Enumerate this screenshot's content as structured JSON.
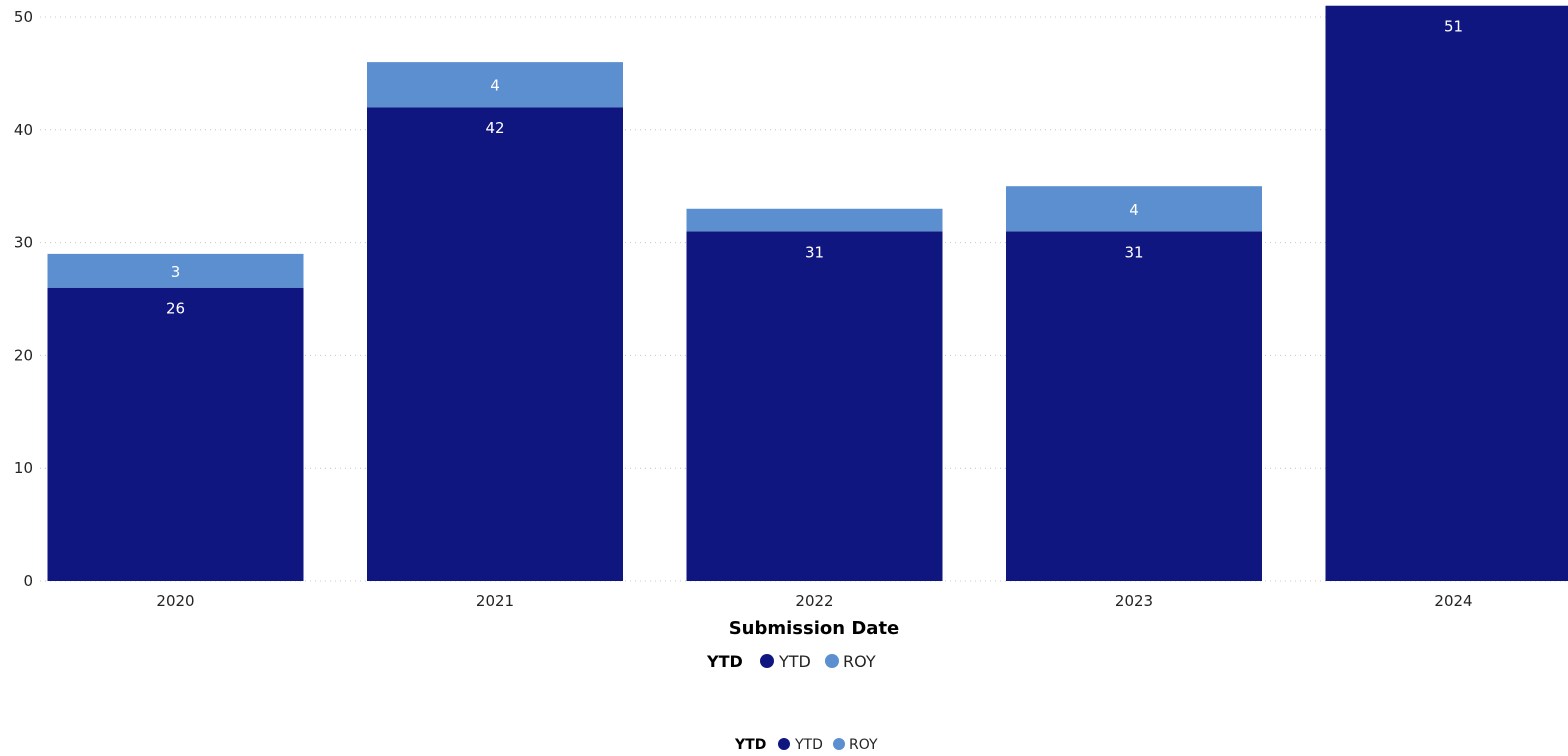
{
  "chart_data": {
    "type": "bar",
    "stacked": true,
    "categories": [
      "2020",
      "2021",
      "2022",
      "2023",
      "2024"
    ],
    "series": [
      {
        "name": "YTD",
        "color": "#10167f",
        "values": [
          26,
          42,
          31,
          31,
          51
        ],
        "labels": [
          "26",
          "42",
          "31",
          "31",
          "51"
        ]
      },
      {
        "name": "ROY",
        "color": "#5b8fcf",
        "values": [
          3,
          4,
          2,
          4,
          0
        ],
        "labels": [
          "3",
          "4",
          "",
          "4",
          ""
        ]
      }
    ],
    "xlabel": "Submission Date",
    "ylabel": "",
    "ylim": [
      0,
      50
    ],
    "yticks": [
      "0",
      "10",
      "20",
      "30",
      "40",
      "50"
    ],
    "grid": true,
    "legend": {
      "title": "YTD",
      "placement": "bottom-center",
      "entries": [
        "YTD",
        "ROY"
      ]
    },
    "legend_repeat": {
      "title": "YTD",
      "entries": [
        "YTD",
        "ROY"
      ]
    }
  }
}
